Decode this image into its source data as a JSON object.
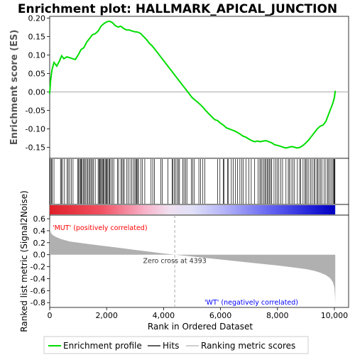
{
  "chart_data": {
    "type": "line",
    "title": "Enrichment plot: HALLMARK_APICAL_JUNCTION",
    "es_panel": {
      "ylabel": "Enrichment score (ES)",
      "ylim": [
        -0.18,
        0.205
      ],
      "yticks": [
        -0.15,
        -0.1,
        -0.05,
        0.0,
        0.05,
        0.1,
        0.15,
        0.2
      ],
      "ytick_labels": [
        "-0.15",
        "-0.10",
        "-0.05",
        "0.00",
        "0.05",
        "0.10",
        "0.15",
        "0.20"
      ],
      "series": [
        {
          "name": "Enrichment profile",
          "color": "#00dd00",
          "x": [
            0,
            30,
            80,
            150,
            250,
            350,
            420,
            500,
            600,
            700,
            800,
            900,
            1000,
            1100,
            1200,
            1300,
            1400,
            1500,
            1600,
            1700,
            1800,
            1900,
            2000,
            2100,
            2200,
            2300,
            2400,
            2500,
            2600,
            2700,
            2800,
            2900,
            3000,
            3100,
            3200,
            3300,
            3400,
            3500,
            3600,
            3700,
            3800,
            3900,
            4000,
            4100,
            4200,
            4300,
            4400,
            4500,
            4600,
            4700,
            4800,
            4900,
            5000,
            5100,
            5200,
            5300,
            5400,
            5500,
            5600,
            5700,
            5800,
            5900,
            6000,
            6100,
            6200,
            6300,
            6400,
            6500,
            6600,
            6700,
            6800,
            6900,
            7000,
            7100,
            7200,
            7300,
            7400,
            7500,
            7600,
            7700,
            7800,
            7900,
            8000,
            8100,
            8200,
            8300,
            8400,
            8500,
            8600,
            8700,
            8800,
            8900,
            9000,
            9100,
            9200,
            9300,
            9400,
            9500,
            9600,
            9700,
            9800,
            9900,
            9950,
            10000,
            10030
          ],
          "y": [
            -0.005,
            0.03,
            0.06,
            0.08,
            0.07,
            0.085,
            0.098,
            0.09,
            0.095,
            0.093,
            0.09,
            0.088,
            0.1,
            0.115,
            0.12,
            0.135,
            0.145,
            0.155,
            0.158,
            0.165,
            0.178,
            0.185,
            0.19,
            0.192,
            0.188,
            0.18,
            0.176,
            0.178,
            0.172,
            0.168,
            0.168,
            0.165,
            0.163,
            0.162,
            0.158,
            0.15,
            0.142,
            0.132,
            0.125,
            0.115,
            0.105,
            0.095,
            0.085,
            0.075,
            0.065,
            0.055,
            0.045,
            0.035,
            0.025,
            0.015,
            0.005,
            -0.005,
            -0.015,
            -0.022,
            -0.028,
            -0.035,
            -0.043,
            -0.052,
            -0.06,
            -0.068,
            -0.075,
            -0.078,
            -0.085,
            -0.09,
            -0.097,
            -0.1,
            -0.103,
            -0.106,
            -0.11,
            -0.115,
            -0.12,
            -0.123,
            -0.128,
            -0.132,
            -0.135,
            -0.133,
            -0.135,
            -0.133,
            -0.132,
            -0.135,
            -0.138,
            -0.143,
            -0.145,
            -0.147,
            -0.15,
            -0.152,
            -0.15,
            -0.148,
            -0.15,
            -0.152,
            -0.15,
            -0.145,
            -0.138,
            -0.13,
            -0.12,
            -0.11,
            -0.1,
            -0.093,
            -0.09,
            -0.08,
            -0.06,
            -0.04,
            -0.03,
            -0.015,
            0.003
          ]
        }
      ]
    },
    "hits_panel": {
      "series_name": "Hits",
      "hit_color": "#000000",
      "hit_positions": [
        20,
        60,
        90,
        150,
        380,
        410,
        450,
        520,
        610,
        650,
        700,
        760,
        820,
        980,
        1010,
        1050,
        1080,
        1110,
        1140,
        1180,
        1220,
        1250,
        1300,
        1340,
        1380,
        1420,
        1460,
        1500,
        1540,
        1600,
        1700,
        1730,
        1760,
        1790,
        1820,
        1850,
        1880,
        1910,
        1950,
        1980,
        2010,
        2040,
        2080,
        2110,
        2150,
        2200,
        2250,
        2380,
        2420,
        2500,
        2540,
        2580,
        2620,
        2700,
        2760,
        2820,
        2880,
        2940,
        2990,
        3030,
        3060,
        3090,
        3120,
        3200,
        3260,
        3340,
        3560,
        3620,
        3680,
        3900,
        3950,
        4150,
        4300,
        4320,
        4380,
        4420,
        4480,
        4520,
        4560,
        4680,
        4720,
        4780,
        4820,
        4980,
        5020,
        5080,
        5240,
        5300,
        5380,
        5450,
        5900,
        5980,
        6100,
        6120,
        6250,
        6280,
        6380,
        6450,
        6520,
        6600,
        6680,
        6740,
        6800,
        6900,
        7000,
        7080,
        7200,
        7320,
        7380,
        7420,
        7460,
        7520,
        7560,
        7600,
        7640,
        7680,
        7720,
        7760,
        7800,
        7880,
        7940,
        8000,
        8050,
        8120,
        8180,
        8300,
        8380,
        8420,
        8480,
        8540,
        8600,
        8700,
        8780,
        8820,
        8900,
        8960,
        9000,
        9040,
        9100,
        9160,
        9220,
        9280,
        9320,
        9380,
        9420,
        9460,
        9520,
        9560,
        9640,
        9700,
        9760,
        9800,
        9850,
        9900,
        9950,
        9980,
        10000,
        10020
      ]
    },
    "metric_panel": {
      "ylabel": "Ranked list metric (Signal2Noise)",
      "xlabel": "Rank in Ordered Dataset",
      "ylim": [
        -0.88,
        0.66
      ],
      "yticks": [
        -0.8,
        -0.6,
        -0.4,
        -0.2,
        0.0,
        0.2,
        0.4,
        0.6
      ],
      "ytick_labels": [
        "-0.8",
        "-0.6",
        "-0.4",
        "-0.2",
        "0.0",
        "0.2",
        "0.4",
        "0.6"
      ],
      "fill_color": "#b0b0b0",
      "ranks": [
        0,
        10,
        50,
        100,
        200,
        400,
        700,
        1000,
        1500,
        2000,
        2500,
        3000,
        3500,
        4000,
        4393,
        5000,
        6000,
        7000,
        8000,
        8500,
        9000,
        9300,
        9500,
        9700,
        9850,
        9950,
        10000,
        10020,
        10030
      ],
      "values": [
        0.6,
        0.42,
        0.36,
        0.33,
        0.3,
        0.26,
        0.22,
        0.2,
        0.17,
        0.14,
        0.11,
        0.08,
        0.05,
        0.02,
        0.0,
        -0.03,
        -0.08,
        -0.13,
        -0.18,
        -0.21,
        -0.24,
        -0.27,
        -0.3,
        -0.34,
        -0.39,
        -0.46,
        -0.55,
        -0.7,
        -0.82
      ],
      "zero_cross_label": "Zero cross at 4393",
      "zero_cross_rank": 4393,
      "pos_label": "'MUT' (positively correlated)",
      "pos_color": "#ff0000",
      "neg_label": "'WT' (negatively correlated)",
      "neg_color": "#0000ff"
    },
    "xaxis": {
      "xlim": [
        0,
        10500
      ],
      "xticks": [
        0,
        2000,
        4000,
        6000,
        8000,
        10000
      ],
      "xtick_labels": [
        "0",
        "2,000",
        "4,000",
        "6,000",
        "8,000",
        "10,000"
      ],
      "max_rank": 10030
    },
    "legend": {
      "placement": "bottom",
      "items": [
        {
          "label": "Enrichment profile",
          "color": "#00dd00"
        },
        {
          "label": "Hits",
          "color": "#000000"
        },
        {
          "label": "Ranking metric scores",
          "color": "#b0b0b0"
        }
      ]
    }
  }
}
